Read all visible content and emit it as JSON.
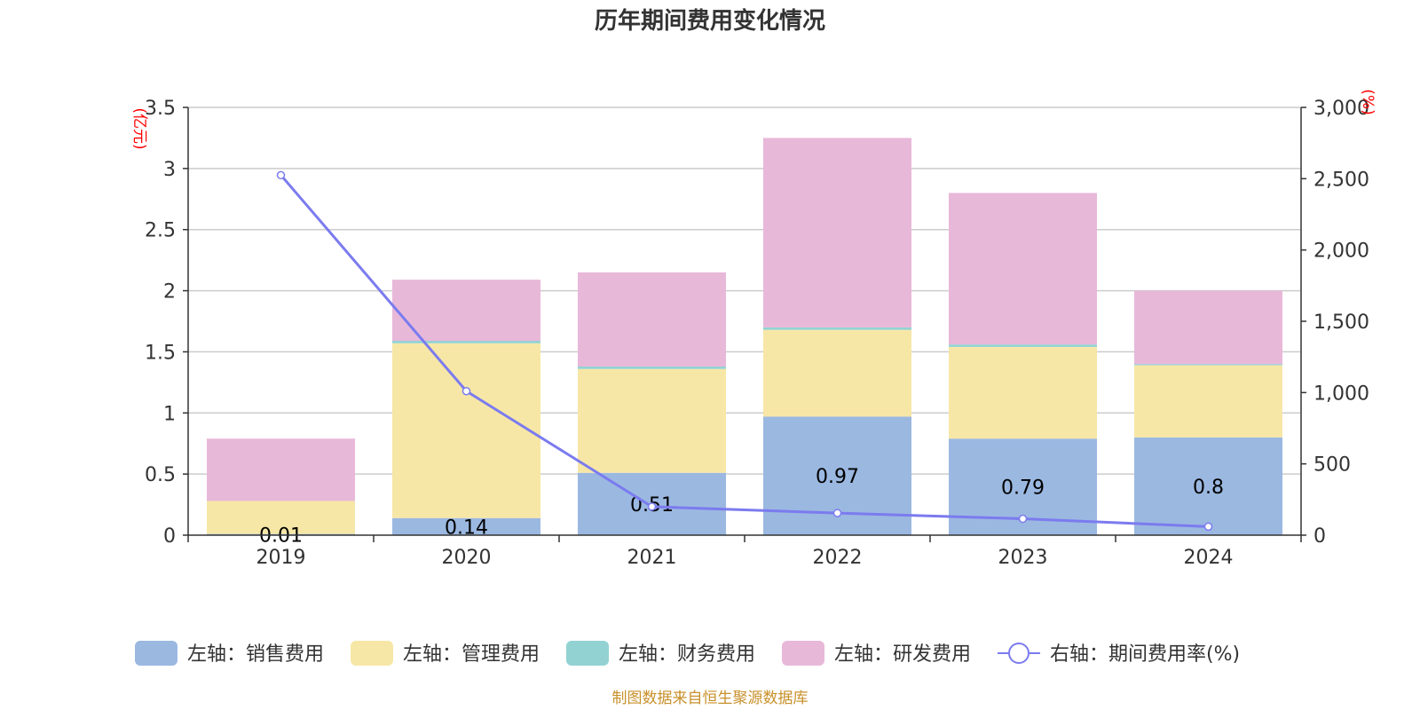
{
  "title": "历年期间费用变化情况",
  "footer": "制图数据来自恒生聚源数据库",
  "chart_data": {
    "type": "bar",
    "stacked": true,
    "categories": [
      "2019",
      "2020",
      "2021",
      "2022",
      "2023",
      "2024"
    ],
    "left_axis": {
      "unit": "(亿元)",
      "range": [
        0,
        3.5
      ],
      "ticks": [
        "0",
        "0.5",
        "1",
        "1.5",
        "2",
        "2.5",
        "3",
        "3.5"
      ]
    },
    "right_axis": {
      "unit": "(%)",
      "range": [
        0,
        3000
      ],
      "ticks": [
        "0",
        "500",
        "1,000",
        "1,500",
        "2,000",
        "2,500",
        "3,000"
      ]
    },
    "series": [
      {
        "name": "左轴：销售费用",
        "color": "#9bb8e1",
        "values": [
          0.01,
          0.14,
          0.51,
          0.97,
          0.79,
          0.8
        ],
        "labels": [
          "0.01",
          "0.14",
          "0.51",
          "0.97",
          "0.79",
          "0.8"
        ]
      },
      {
        "name": "左轴：管理费用",
        "color": "#f7e7a6",
        "values": [
          0.27,
          1.43,
          0.85,
          0.71,
          0.75,
          0.59
        ]
      },
      {
        "name": "左轴：财务费用",
        "color": "#93d2d3",
        "values": [
          0.0,
          0.02,
          0.02,
          0.02,
          0.02,
          0.01
        ]
      },
      {
        "name": "左轴：研发费用",
        "color": "#e8b8d9",
        "values": [
          0.51,
          0.5,
          0.77,
          1.55,
          1.24,
          0.6
        ]
      }
    ],
    "line": {
      "name": "右轴：期间费用率(%)",
      "color": "#7b7bef",
      "values": [
        2525,
        1010,
        200,
        155,
        115,
        60
      ]
    },
    "grid": true,
    "legend_position": "bottom"
  }
}
